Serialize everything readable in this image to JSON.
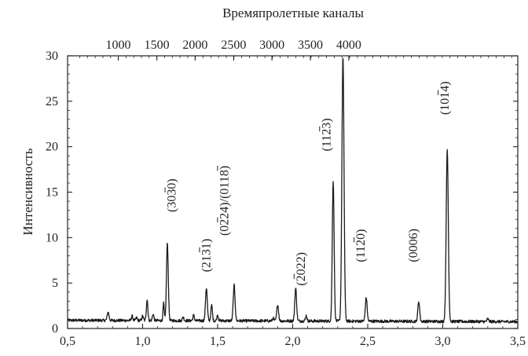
{
  "chart_data": {
    "type": "line",
    "title": "",
    "xlabel": "",
    "ylabel": "Интенсивность",
    "x2label": "Времяпролетные каналы",
    "xlim": [
      0.5,
      3.5
    ],
    "ylim": [
      0,
      30
    ],
    "x_ticks": [
      0.5,
      1.0,
      1.5,
      2.0,
      2.5,
      3.0,
      3.5
    ],
    "x_tick_labels": [
      "0,5",
      "1,0",
      "1,5",
      "2,0",
      "2,5",
      "3,0",
      "3,5"
    ],
    "y_ticks": [
      0,
      5,
      10,
      15,
      20,
      25,
      30
    ],
    "y_tick_labels": [
      "0",
      "5",
      "10",
      "15",
      "20",
      "25",
      "30"
    ],
    "x2_tick_labels": [
      "1000",
      "1500",
      "2000",
      "2500",
      "3000",
      "3500",
      "4000"
    ],
    "x2_tick_positions": [
      0.838,
      1.095,
      1.35,
      1.607,
      1.862,
      2.118,
      2.374
    ],
    "grid": false,
    "baseline": 0.9,
    "peaks": [
      {
        "x": 0.77,
        "y": 1.8,
        "w": 0.006
      },
      {
        "x": 0.93,
        "y": 1.4,
        "w": 0.005
      },
      {
        "x": 0.96,
        "y": 1.2,
        "w": 0.005
      },
      {
        "x": 1.0,
        "y": 1.4,
        "w": 0.005
      },
      {
        "x": 1.03,
        "y": 3.2,
        "w": 0.005
      },
      {
        "x": 1.07,
        "y": 1.6,
        "w": 0.005
      },
      {
        "x": 1.14,
        "y": 2.8,
        "w": 0.004
      },
      {
        "x": 1.165,
        "y": 9.4,
        "w": 0.006
      },
      {
        "x": 1.27,
        "y": 1.3,
        "w": 0.005
      },
      {
        "x": 1.34,
        "y": 1.5,
        "w": 0.005
      },
      {
        "x": 1.425,
        "y": 4.5,
        "w": 0.006
      },
      {
        "x": 1.46,
        "y": 2.6,
        "w": 0.005
      },
      {
        "x": 1.5,
        "y": 1.5,
        "w": 0.005
      },
      {
        "x": 1.61,
        "y": 4.8,
        "w": 0.006
      },
      {
        "x": 1.87,
        "y": 1.2,
        "w": 0.005
      },
      {
        "x": 1.9,
        "y": 2.7,
        "w": 0.006
      },
      {
        "x": 2.02,
        "y": 4.5,
        "w": 0.006
      },
      {
        "x": 2.09,
        "y": 1.5,
        "w": 0.005
      },
      {
        "x": 2.27,
        "y": 16.4,
        "w": 0.006
      },
      {
        "x": 2.335,
        "y": 30.0,
        "w": 0.007
      },
      {
        "x": 2.49,
        "y": 3.5,
        "w": 0.006
      },
      {
        "x": 2.84,
        "y": 3.1,
        "w": 0.006
      },
      {
        "x": 3.03,
        "y": 19.8,
        "w": 0.007
      },
      {
        "x": 3.3,
        "y": 1.2,
        "w": 0.005
      }
    ],
    "annotations": [
      {
        "text": "(3030)",
        "x": 1.22,
        "y": 12.8,
        "bars": [
          3
        ]
      },
      {
        "text": "(2131)",
        "x": 1.45,
        "y": 6.2,
        "bars": [
          3
        ]
      },
      {
        "text": "(0224)/(0118)",
        "x": 1.57,
        "y": 10.2,
        "bars": [
          2,
          10
        ]
      },
      {
        "text": "(2022)",
        "x": 2.08,
        "y": 4.7,
        "bars": [
          1
        ]
      },
      {
        "text": "(1123)",
        "x": 2.25,
        "y": 19.5,
        "bars": [
          3
        ]
      },
      {
        "text": "(1120)",
        "x": 2.48,
        "y": 7.3,
        "bars": [
          3
        ]
      },
      {
        "text": "(0006)",
        "x": 2.83,
        "y": 7.3,
        "bars": []
      },
      {
        "text": "(1014)",
        "x": 3.04,
        "y": 23.5,
        "bars": [
          3
        ]
      }
    ]
  }
}
